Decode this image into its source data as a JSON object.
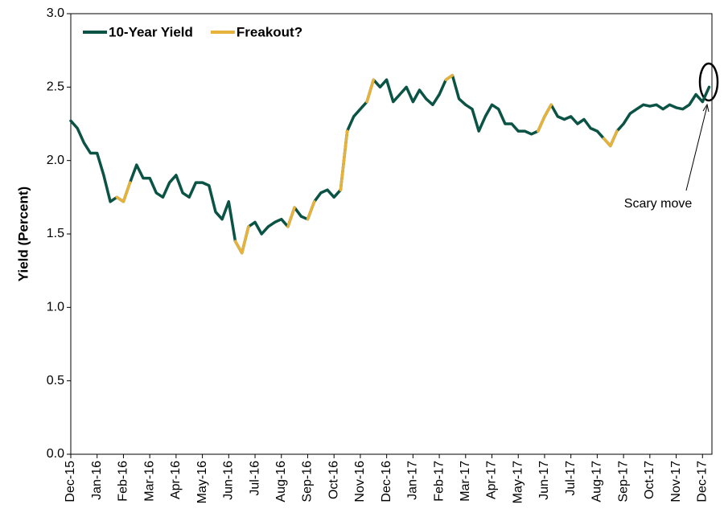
{
  "chart_data": {
    "type": "line",
    "ylabel": "Yield (Percent)",
    "annotation": "Scary move",
    "categories": [
      "Dec-15",
      null,
      null,
      null,
      "Jan-16",
      null,
      null,
      null,
      "Feb-16",
      null,
      null,
      null,
      "Mar-16",
      null,
      null,
      null,
      "Apr-16",
      null,
      null,
      null,
      "May-16",
      null,
      null,
      null,
      "Jun-16",
      null,
      null,
      null,
      "Jul-16",
      null,
      null,
      null,
      "Aug-16",
      null,
      null,
      null,
      "Sep-16",
      null,
      null,
      null,
      "Oct-16",
      null,
      null,
      null,
      "Nov-16",
      null,
      null,
      null,
      "Dec-16",
      null,
      null,
      null,
      "Jan-17",
      null,
      null,
      null,
      "Feb-17",
      null,
      null,
      null,
      "Mar-17",
      null,
      null,
      null,
      "Apr-17",
      null,
      null,
      null,
      "May-17",
      null,
      null,
      null,
      "Jun-17",
      null,
      null,
      null,
      "Jul-17",
      null,
      null,
      null,
      "Aug-17",
      null,
      null,
      null,
      "Sep-17",
      null,
      null,
      null,
      "Oct-17",
      null,
      null,
      null,
      "Nov-17",
      null,
      null,
      null,
      "Dec-17",
      null
    ],
    "series": [
      {
        "name": "10-Year Yield",
        "color": "#0b5345",
        "values": [
          2.27,
          2.22,
          2.12,
          2.05,
          2.05,
          1.9,
          1.72,
          1.75,
          1.72,
          1.85,
          1.97,
          1.88,
          1.88,
          1.78,
          1.75,
          1.85,
          1.9,
          1.78,
          1.75,
          1.85,
          1.85,
          1.83,
          1.65,
          1.6,
          1.72,
          1.45,
          1.37,
          1.55,
          1.58,
          1.5,
          1.55,
          1.58,
          1.6,
          1.55,
          1.68,
          1.62,
          1.6,
          1.72,
          1.78,
          1.8,
          1.75,
          1.8,
          2.2,
          2.3,
          2.35,
          2.4,
          2.55,
          2.5,
          2.55,
          2.4,
          2.45,
          2.5,
          2.4,
          2.48,
          2.42,
          2.38,
          2.45,
          2.55,
          2.58,
          2.42,
          2.38,
          2.35,
          2.2,
          2.3,
          2.38,
          2.35,
          2.25,
          2.25,
          2.2,
          2.2,
          2.18,
          2.2,
          2.3,
          2.38,
          2.3,
          2.28,
          2.3,
          2.25,
          2.28,
          2.22,
          2.2,
          2.15,
          2.1,
          2.2,
          2.25,
          2.32,
          2.35,
          2.38,
          2.37,
          2.38,
          2.35,
          2.38,
          2.36,
          2.35,
          2.38,
          2.45,
          2.4,
          2.5
        ]
      },
      {
        "name": "Freakout?",
        "color": "#e6b23c",
        "values": [
          null,
          null,
          null,
          null,
          null,
          null,
          null,
          1.75,
          1.72,
          1.85,
          null,
          null,
          null,
          null,
          null,
          null,
          null,
          null,
          null,
          null,
          null,
          null,
          null,
          null,
          null,
          1.45,
          1.37,
          1.55,
          null,
          null,
          null,
          null,
          null,
          1.55,
          1.68,
          null,
          1.6,
          1.72,
          null,
          null,
          null,
          1.8,
          2.2,
          null,
          null,
          2.4,
          2.55,
          null,
          null,
          null,
          null,
          null,
          null,
          null,
          null,
          null,
          null,
          2.55,
          2.58,
          null,
          null,
          null,
          null,
          null,
          null,
          null,
          null,
          null,
          null,
          null,
          null,
          2.2,
          2.3,
          2.38,
          null,
          null,
          null,
          null,
          null,
          null,
          null,
          2.15,
          2.1,
          2.2,
          null,
          null,
          null,
          null,
          null,
          null,
          null,
          null,
          null,
          null,
          null,
          null,
          null,
          null
        ]
      }
    ],
    "ylim": [
      0,
      3
    ],
    "yticks": [
      {
        "value": 0,
        "label": "0.0"
      },
      0.5,
      {
        "value": 1,
        "label": "1.0"
      },
      1.5,
      {
        "value": 2,
        "label": "2.0"
      },
      2.5,
      {
        "value": 3,
        "label": "3.0"
      }
    ],
    "grid": false,
    "legend": "top-left"
  }
}
